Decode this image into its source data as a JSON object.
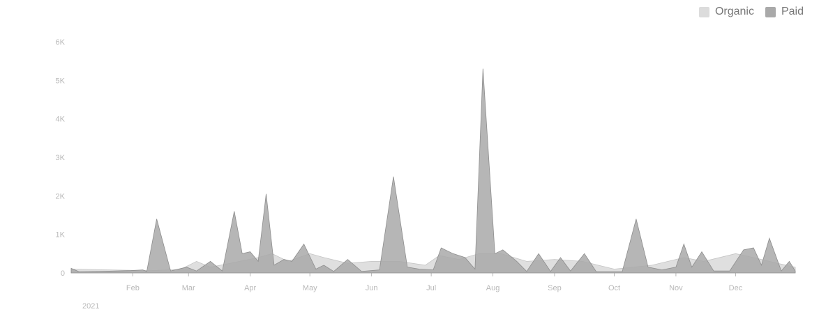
{
  "legend": {
    "organic_label": "Organic",
    "paid_label": "Paid"
  },
  "colors": {
    "organic": "#dcdcdc",
    "paid": "#a9a9a9",
    "axis": "#b8b8b8",
    "text": "#777777"
  },
  "chart_data": {
    "type": "area",
    "title": "",
    "xlabel": "",
    "ylabel": "",
    "ylim": [
      0,
      6000
    ],
    "y_ticks": [
      0,
      1000,
      2000,
      3000,
      4000,
      5000,
      6000
    ],
    "y_tick_labels": [
      "0",
      "1K",
      "2K",
      "3K",
      "4K",
      "5K",
      "6K"
    ],
    "x_tick_labels": [
      "Feb",
      "Mar",
      "Apr",
      "May",
      "Jun",
      "Jul",
      "Aug",
      "Sep",
      "Oct",
      "Nov",
      "Dec"
    ],
    "year_label": "2021",
    "grid": false,
    "legend_position": "top-right",
    "x_start": "2021-01-01",
    "x_end": "2021-12-31",
    "series": [
      {
        "name": "Organic",
        "points": [
          [
            "2021-01-01",
            100
          ],
          [
            "2021-01-20",
            80
          ],
          [
            "2021-02-10",
            60
          ],
          [
            "2021-02-25",
            90
          ],
          [
            "2021-03-05",
            300
          ],
          [
            "2021-03-12",
            150
          ],
          [
            "2021-03-22",
            250
          ],
          [
            "2021-04-05",
            400
          ],
          [
            "2021-04-12",
            500
          ],
          [
            "2021-04-20",
            300
          ],
          [
            "2021-05-01",
            500
          ],
          [
            "2021-05-08",
            400
          ],
          [
            "2021-05-20",
            250
          ],
          [
            "2021-06-01",
            300
          ],
          [
            "2021-06-15",
            300
          ],
          [
            "2021-06-28",
            200
          ],
          [
            "2021-07-05",
            450
          ],
          [
            "2021-07-15",
            350
          ],
          [
            "2021-07-25",
            500
          ],
          [
            "2021-08-05",
            500
          ],
          [
            "2021-08-18",
            300
          ],
          [
            "2021-09-01",
            350
          ],
          [
            "2021-09-15",
            300
          ],
          [
            "2021-10-01",
            100
          ],
          [
            "2021-10-20",
            200
          ],
          [
            "2021-11-05",
            400
          ],
          [
            "2021-11-15",
            300
          ],
          [
            "2021-12-01",
            500
          ],
          [
            "2021-12-10",
            400
          ],
          [
            "2021-12-22",
            250
          ],
          [
            "2021-12-31",
            150
          ]
        ]
      },
      {
        "name": "Paid",
        "points": [
          [
            "2021-01-01",
            120
          ],
          [
            "2021-01-05",
            30
          ],
          [
            "2021-01-15",
            40
          ],
          [
            "2021-01-31",
            60
          ],
          [
            "2021-02-06",
            80
          ],
          [
            "2021-02-08",
            40
          ],
          [
            "2021-02-13",
            1400
          ],
          [
            "2021-02-20",
            50
          ],
          [
            "2021-02-28",
            150
          ],
          [
            "2021-03-05",
            50
          ],
          [
            "2021-03-12",
            300
          ],
          [
            "2021-03-18",
            50
          ],
          [
            "2021-03-24",
            1600
          ],
          [
            "2021-03-28",
            500
          ],
          [
            "2021-04-01",
            550
          ],
          [
            "2021-04-05",
            300
          ],
          [
            "2021-04-09",
            2050
          ],
          [
            "2021-04-13",
            200
          ],
          [
            "2021-04-18",
            350
          ],
          [
            "2021-04-22",
            300
          ],
          [
            "2021-04-28",
            750
          ],
          [
            "2021-05-04",
            100
          ],
          [
            "2021-05-08",
            200
          ],
          [
            "2021-05-13",
            40
          ],
          [
            "2021-05-20",
            350
          ],
          [
            "2021-05-27",
            40
          ],
          [
            "2021-06-05",
            80
          ],
          [
            "2021-06-12",
            2500
          ],
          [
            "2021-06-19",
            150
          ],
          [
            "2021-06-25",
            100
          ],
          [
            "2021-07-02",
            80
          ],
          [
            "2021-07-06",
            650
          ],
          [
            "2021-07-12",
            500
          ],
          [
            "2021-07-18",
            400
          ],
          [
            "2021-07-23",
            100
          ],
          [
            "2021-07-27",
            5300
          ],
          [
            "2021-08-02",
            500
          ],
          [
            "2021-08-06",
            600
          ],
          [
            "2021-08-13",
            300
          ],
          [
            "2021-08-18",
            40
          ],
          [
            "2021-08-24",
            500
          ],
          [
            "2021-08-30",
            40
          ],
          [
            "2021-09-04",
            400
          ],
          [
            "2021-09-09",
            50
          ],
          [
            "2021-09-16",
            500
          ],
          [
            "2021-09-22",
            30
          ],
          [
            "2021-10-05",
            30
          ],
          [
            "2021-10-12",
            1400
          ],
          [
            "2021-10-18",
            150
          ],
          [
            "2021-10-25",
            80
          ],
          [
            "2021-11-01",
            150
          ],
          [
            "2021-11-05",
            750
          ],
          [
            "2021-11-09",
            150
          ],
          [
            "2021-11-14",
            550
          ],
          [
            "2021-11-20",
            50
          ],
          [
            "2021-11-28",
            50
          ],
          [
            "2021-12-05",
            600
          ],
          [
            "2021-12-10",
            650
          ],
          [
            "2021-12-14",
            200
          ],
          [
            "2021-12-18",
            900
          ],
          [
            "2021-12-24",
            50
          ],
          [
            "2021-12-28",
            300
          ],
          [
            "2021-12-31",
            50
          ]
        ]
      }
    ]
  }
}
